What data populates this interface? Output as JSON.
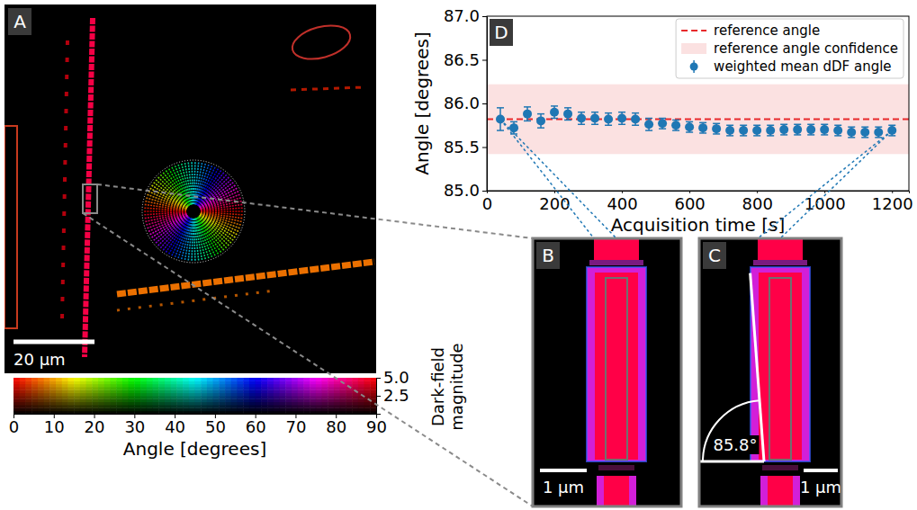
{
  "chart_data": [
    {
      "type": "scatter",
      "panel_label": "D",
      "x": [
        40,
        80,
        120,
        160,
        200,
        240,
        280,
        320,
        360,
        400,
        440,
        480,
        520,
        560,
        600,
        640,
        680,
        720,
        760,
        800,
        840,
        880,
        920,
        960,
        1000,
        1040,
        1080,
        1120,
        1160,
        1200
      ],
      "series": [
        {
          "name": "weighted mean dDF angle",
          "color": "#1f77b4",
          "marker": "circle",
          "values": [
            85.82,
            85.72,
            85.88,
            85.8,
            85.9,
            85.88,
            85.83,
            85.83,
            85.82,
            85.83,
            85.82,
            85.76,
            85.77,
            85.75,
            85.73,
            85.72,
            85.71,
            85.69,
            85.69,
            85.69,
            85.69,
            85.7,
            85.7,
            85.7,
            85.7,
            85.69,
            85.67,
            85.67,
            85.67,
            85.69
          ],
          "errors": [
            0.13,
            0.07,
            0.08,
            0.08,
            0.07,
            0.07,
            0.07,
            0.07,
            0.07,
            0.07,
            0.07,
            0.07,
            0.06,
            0.06,
            0.06,
            0.06,
            0.06,
            0.06,
            0.06,
            0.06,
            0.06,
            0.06,
            0.06,
            0.06,
            0.06,
            0.06,
            0.06,
            0.06,
            0.06,
            0.06
          ]
        }
      ],
      "reference_line": {
        "name": "reference angle",
        "value": 85.82,
        "color": "#e8292b",
        "line_style": "dashed"
      },
      "reference_band": {
        "name": "reference angle confidence",
        "low": 85.42,
        "high": 86.22,
        "color": "#fbe1e1"
      },
      "xlabel": "Acquisition time [s]",
      "ylabel": "Angle [degrees]",
      "xlim": [
        0,
        1250
      ],
      "xticks": [
        0,
        200,
        400,
        600,
        800,
        1000,
        1200
      ],
      "ylim": [
        85,
        87
      ],
      "yticks": [
        {
          "value": 85,
          "label": "85.0"
        },
        85.5,
        {
          "value": 86,
          "label": "86.0"
        },
        86.5,
        {
          "value": 87,
          "label": "87.0"
        }
      ],
      "legend": "top-right",
      "grid": false
    },
    {
      "type": "image",
      "panel_label": "A",
      "scale_bar": "20 μm",
      "colorbar": {
        "xlabel": "Angle [degrees]",
        "xlim": [
          0,
          90
        ],
        "xticks": [
          0,
          10,
          20,
          30,
          40,
          50,
          60,
          70,
          80,
          90
        ],
        "ylabel": "Dark-field magnitude",
        "ylim": [
          0,
          5
        ],
        "yticks": [
          2.5,
          {
            "value": 5,
            "label": "5.0"
          }
        ]
      }
    },
    {
      "type": "image",
      "panel_label": "B",
      "scale_bar": "1 μm"
    },
    {
      "type": "image",
      "panel_label": "C",
      "scale_bar": "1 μm",
      "annotation": {
        "value": 85.8,
        "label": "85.8°"
      }
    }
  ]
}
